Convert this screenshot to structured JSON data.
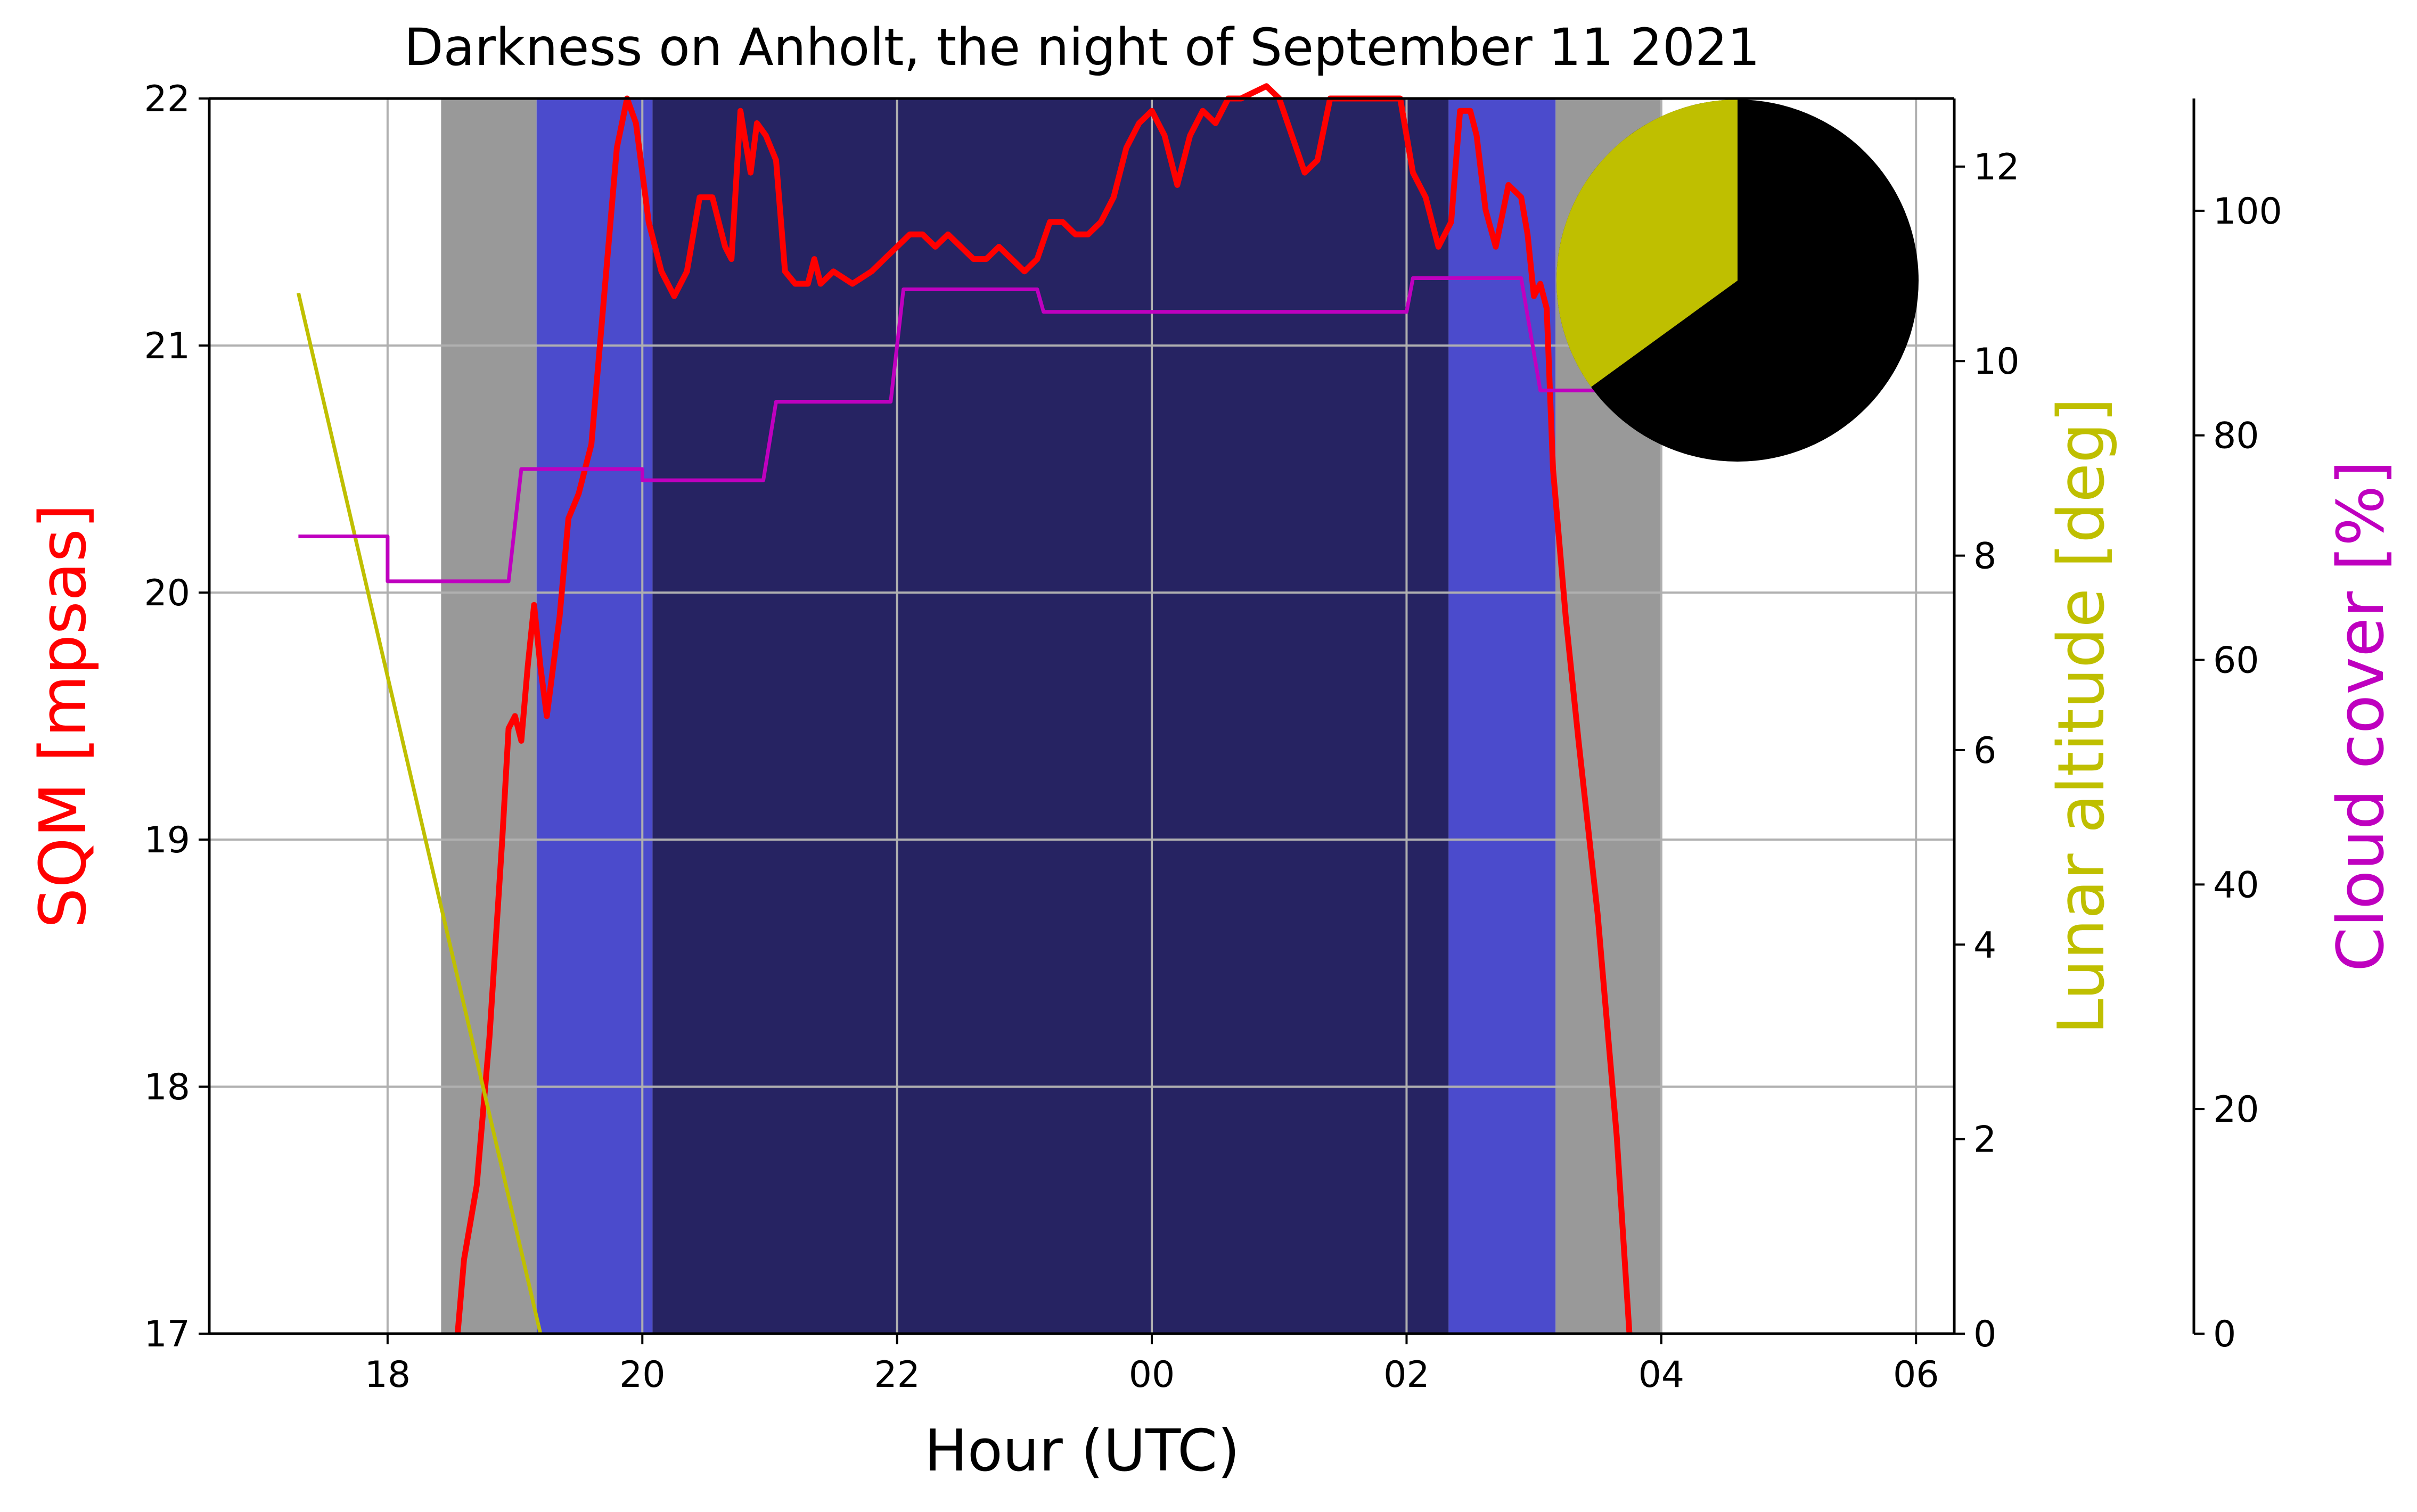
{
  "chart_data": {
    "type": "line",
    "title": "Darkness on Anholt, the night of September 11 2021",
    "xlabel": "Hour (UTC)",
    "x_ticks": [
      "18",
      "20",
      "22",
      "00",
      "02",
      "04",
      "06"
    ],
    "x_unit": "hours since 00:00 UTC on September 11 2021",
    "xlim": [
      16.6,
      30.3
    ],
    "grid": true,
    "axes": {
      "sqm": {
        "label": "SQM [mpsas]",
        "color": "#ff0000",
        "ylim": [
          17,
          22
        ],
        "ticks": [
          "17",
          "18",
          "19",
          "20",
          "21",
          "22"
        ]
      },
      "lunar": {
        "label": "Lunar altitude [deg]",
        "color": "#bfbf00",
        "ylim": [
          0,
          12.7
        ],
        "ticks": [
          "0",
          "2",
          "4",
          "6",
          "8",
          "10",
          "12"
        ]
      },
      "cloud": {
        "label": "Cloud cover [%]",
        "color": "#bf00bf",
        "ylim": [
          0,
          110
        ],
        "ticks": [
          "0",
          "20",
          "40",
          "60",
          "80",
          "100"
        ]
      }
    },
    "twilight_bands": [
      {
        "name": "civil-twilight",
        "start": 18.42,
        "end": 19.17,
        "color": "#999999"
      },
      {
        "name": "nautical-twilight",
        "start": 19.17,
        "end": 20.08,
        "color": "#4b4bcc"
      },
      {
        "name": "astronomical-night",
        "start": 20.08,
        "end": 26.33,
        "color": "#262362"
      },
      {
        "name": "nautical-twilight",
        "start": 26.33,
        "end": 27.17,
        "color": "#4b4bcc"
      },
      {
        "name": "civil-twilight",
        "start": 27.17,
        "end": 28.0,
        "color": "#999999"
      }
    ],
    "series": [
      {
        "axis": "sqm",
        "color": "#ff0000",
        "points": [
          [
            18.55,
            17.0
          ],
          [
            18.6,
            17.3
          ],
          [
            18.7,
            17.6
          ],
          [
            18.8,
            18.2
          ],
          [
            18.9,
            19.0
          ],
          [
            18.95,
            19.45
          ],
          [
            19.0,
            19.5
          ],
          [
            19.05,
            19.4
          ],
          [
            19.1,
            19.7
          ],
          [
            19.15,
            19.95
          ],
          [
            19.2,
            19.7
          ],
          [
            19.25,
            19.5
          ],
          [
            19.3,
            19.7
          ],
          [
            19.35,
            19.9
          ],
          [
            19.42,
            20.3
          ],
          [
            19.5,
            20.4
          ],
          [
            19.6,
            20.6
          ],
          [
            19.7,
            21.2
          ],
          [
            19.8,
            21.8
          ],
          [
            19.88,
            22.0
          ],
          [
            19.95,
            21.9
          ],
          [
            20.05,
            21.5
          ],
          [
            20.15,
            21.3
          ],
          [
            20.25,
            21.2
          ],
          [
            20.35,
            21.3
          ],
          [
            20.45,
            21.6
          ],
          [
            20.55,
            21.6
          ],
          [
            20.65,
            21.4
          ],
          [
            20.7,
            21.35
          ],
          [
            20.77,
            21.95
          ],
          [
            20.85,
            21.7
          ],
          [
            20.9,
            21.9
          ],
          [
            20.97,
            21.85
          ],
          [
            21.05,
            21.75
          ],
          [
            21.12,
            21.3
          ],
          [
            21.2,
            21.25
          ],
          [
            21.3,
            21.25
          ],
          [
            21.35,
            21.35
          ],
          [
            21.4,
            21.25
          ],
          [
            21.5,
            21.3
          ],
          [
            21.65,
            21.25
          ],
          [
            21.8,
            21.3
          ],
          [
            21.9,
            21.35
          ],
          [
            22.0,
            21.4
          ],
          [
            22.1,
            21.45
          ],
          [
            22.2,
            21.45
          ],
          [
            22.3,
            21.4
          ],
          [
            22.4,
            21.45
          ],
          [
            22.5,
            21.4
          ],
          [
            22.6,
            21.35
          ],
          [
            22.7,
            21.35
          ],
          [
            22.8,
            21.4
          ],
          [
            22.9,
            21.35
          ],
          [
            23.0,
            21.3
          ],
          [
            23.1,
            21.35
          ],
          [
            23.2,
            21.5
          ],
          [
            23.3,
            21.5
          ],
          [
            23.4,
            21.45
          ],
          [
            23.5,
            21.45
          ],
          [
            23.6,
            21.5
          ],
          [
            23.7,
            21.6
          ],
          [
            23.8,
            21.8
          ],
          [
            23.9,
            21.9
          ],
          [
            24.0,
            21.95
          ],
          [
            24.1,
            21.85
          ],
          [
            24.2,
            21.65
          ],
          [
            24.3,
            21.85
          ],
          [
            24.4,
            21.95
          ],
          [
            24.5,
            21.9
          ],
          [
            24.6,
            22.0
          ],
          [
            24.7,
            22.0
          ],
          [
            24.9,
            22.05
          ],
          [
            25.0,
            22.0
          ],
          [
            25.1,
            21.85
          ],
          [
            25.2,
            21.7
          ],
          [
            25.3,
            21.75
          ],
          [
            25.4,
            22.0
          ],
          [
            25.95,
            22.0
          ],
          [
            26.05,
            21.7
          ],
          [
            26.15,
            21.6
          ],
          [
            26.25,
            21.4
          ],
          [
            26.35,
            21.5
          ],
          [
            26.42,
            21.95
          ],
          [
            26.5,
            21.95
          ],
          [
            26.55,
            21.85
          ],
          [
            26.62,
            21.55
          ],
          [
            26.7,
            21.4
          ],
          [
            26.8,
            21.65
          ],
          [
            26.9,
            21.6
          ],
          [
            26.95,
            21.45
          ],
          [
            27.0,
            21.2
          ],
          [
            27.05,
            21.25
          ],
          [
            27.1,
            21.15
          ],
          [
            27.15,
            20.5
          ],
          [
            27.25,
            19.9
          ],
          [
            27.35,
            19.4
          ],
          [
            27.5,
            18.7
          ],
          [
            27.65,
            17.8
          ],
          [
            27.75,
            17.0
          ]
        ]
      },
      {
        "axis": "lunar",
        "color": "#bfbf00",
        "points": [
          [
            17.3,
            10.7
          ],
          [
            19.2,
            0.0
          ]
        ]
      },
      {
        "axis": "cloud",
        "color": "#bf00bf",
        "points": [
          [
            17.3,
            71
          ],
          [
            18.0,
            71
          ],
          [
            18.0,
            67
          ],
          [
            18.95,
            67
          ],
          [
            19.05,
            77
          ],
          [
            20.0,
            77
          ],
          [
            20.0,
            76
          ],
          [
            20.95,
            76
          ],
          [
            21.05,
            83
          ],
          [
            21.95,
            83
          ],
          [
            22.05,
            93
          ],
          [
            23.1,
            93
          ],
          [
            23.15,
            91
          ],
          [
            26.0,
            91
          ],
          [
            26.05,
            94
          ],
          [
            26.9,
            94
          ],
          [
            27.05,
            84
          ],
          [
            27.5,
            84
          ]
        ]
      }
    ],
    "moon_phase_pie": {
      "illuminated_fraction": 0.35,
      "illuminated_color": "#bfbf00",
      "dark_color": "#000000"
    }
  }
}
